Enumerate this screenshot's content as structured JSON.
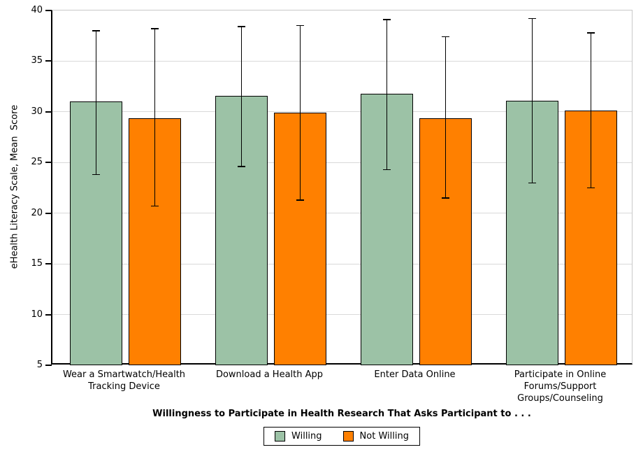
{
  "chart_data": {
    "type": "bar",
    "title": "",
    "xlabel": "Willingness to Participate in Health Research That Asks Participant to . . .",
    "ylabel": "eHealth Literacy Scale, Mean  Score",
    "ylim": [
      5,
      40
    ],
    "yticks": [
      5,
      10,
      15,
      20,
      25,
      30,
      35,
      40
    ],
    "grid": true,
    "legend_position": "bottom-center",
    "bar_edge_color": "#000000",
    "error_bar_color": "#000000",
    "gridline_color": "#d9d9d9",
    "categories": [
      "Wear a Smartwatch/Health\nTracking Device",
      "Download a Health App",
      "Enter Data Online",
      "Participate in Online\nForums/Support\nGroups/Counseling"
    ],
    "series": [
      {
        "name": "Willing",
        "color": "#9cc2a6",
        "values": [
          31.0,
          31.6,
          31.8,
          31.1
        ],
        "error_low": [
          23.8,
          24.6,
          24.3,
          23.0
        ],
        "error_high": [
          38.0,
          38.4,
          39.1,
          39.2
        ]
      },
      {
        "name": "Not Willing",
        "color": "#ff8000",
        "values": [
          29.4,
          29.9,
          29.4,
          30.1
        ],
        "error_low": [
          20.7,
          21.3,
          21.5,
          22.5
        ],
        "error_high": [
          38.2,
          38.5,
          37.4,
          37.8
        ]
      }
    ]
  }
}
